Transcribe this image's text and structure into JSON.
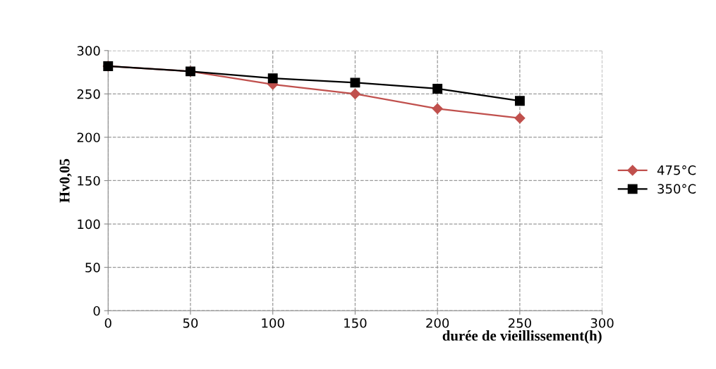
{
  "chart_data": {
    "type": "line",
    "xlabel": "durée de vieillissement(h)",
    "ylabel": "Hv0,05",
    "x": [
      0,
      50,
      100,
      150,
      200,
      250
    ],
    "series": [
      {
        "name": "475°C",
        "color": "#c0504d",
        "marker": "diamond",
        "values": [
          282,
          276,
          261,
          250,
          233,
          222
        ]
      },
      {
        "name": "350°C",
        "color": "#000000",
        "marker": "square",
        "values": [
          282,
          276,
          268,
          263,
          256,
          242
        ]
      }
    ],
    "xlim": [
      0,
      300
    ],
    "xticks": [
      0,
      50,
      100,
      150,
      200,
      250,
      300
    ],
    "ylim": [
      0,
      300
    ],
    "yticks": [
      0,
      50,
      100,
      150,
      200,
      250,
      300
    ],
    "grid": true,
    "legend": "right"
  }
}
